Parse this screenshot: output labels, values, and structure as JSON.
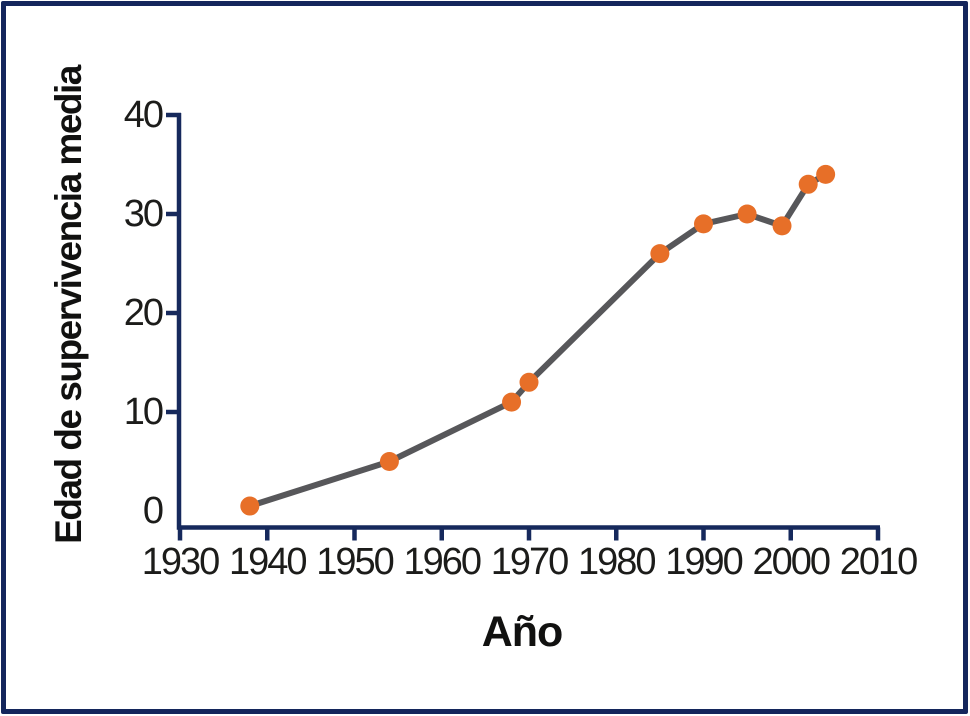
{
  "frame": {
    "border_color": "#14265C"
  },
  "chart_data": {
    "type": "line",
    "title": "",
    "xlabel": "Año",
    "ylabel": "Edad de supervivencia media",
    "x": [
      1938,
      1954,
      1968,
      1970,
      1985,
      1990,
      1995,
      1999,
      2002,
      2004
    ],
    "y": [
      0.5,
      5,
      11,
      13,
      26,
      29,
      30,
      28.8,
      33,
      34
    ],
    "x_ticks": [
      1930,
      1940,
      1950,
      1960,
      1970,
      1980,
      1990,
      2000,
      2010
    ],
    "y_ticks": [
      0,
      10,
      20,
      30,
      40
    ],
    "xlim": [
      1930,
      2010
    ],
    "ylim": [
      0,
      40
    ],
    "grid": false,
    "legend": null,
    "colors": {
      "axis": "#16295C",
      "line": "#57575A",
      "marker": "#E76F28",
      "tick_text": "#1C1C1A"
    }
  }
}
